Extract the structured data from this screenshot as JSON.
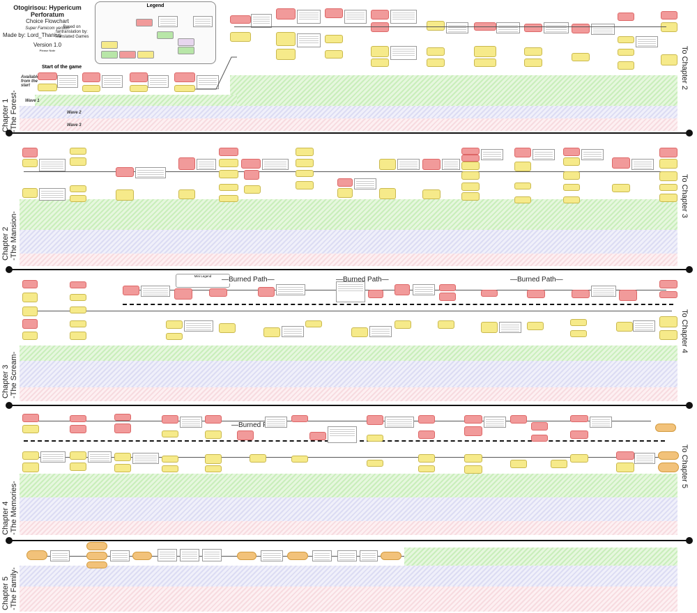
{
  "header": {
    "title": "Otogirisou: Hypericum Perforatum",
    "subtitle": "Choice Flowchart",
    "edition": "Super Famicom version",
    "based_on": "Based on fantranslation by: Translated Games",
    "made_by": "Made by: Lord_Thanius",
    "version": "Version 1.0",
    "note_title": "Please Note",
    "start_label": "Start of the game"
  },
  "legend": {
    "title": "Legend"
  },
  "chapters": [
    {
      "label": "Chapter 1",
      "sub": "-The Forest-",
      "next": "To Chapter 2"
    },
    {
      "label": "Chapter 2",
      "sub": "-The Mansion-",
      "next": "To Chapter 3"
    },
    {
      "label": "Chapter 3",
      "sub": "-The Scream-",
      "next": "To Chapter 4"
    },
    {
      "label": "Chapter 4",
      "sub": "-The Memories-",
      "next": "To Chapter 5"
    },
    {
      "label": "Chapter 5",
      "sub": "-The Family-",
      "next": ""
    }
  ],
  "rows": {
    "available": "Available from the start",
    "wave1": "Wave 1",
    "wave2": "Wave 2",
    "wave3": "Wave 3"
  },
  "burned_path": "—Burned Path—",
  "mini_legend": "Mini Legend",
  "colors": {
    "red_node": "#f19a9a",
    "yellow_node": "#f6ea8a",
    "orange_node": "#f2c27a",
    "green_band": "#c9eebb",
    "blue_band": "#dcdcf3",
    "pink_band": "#f7dbe0"
  }
}
